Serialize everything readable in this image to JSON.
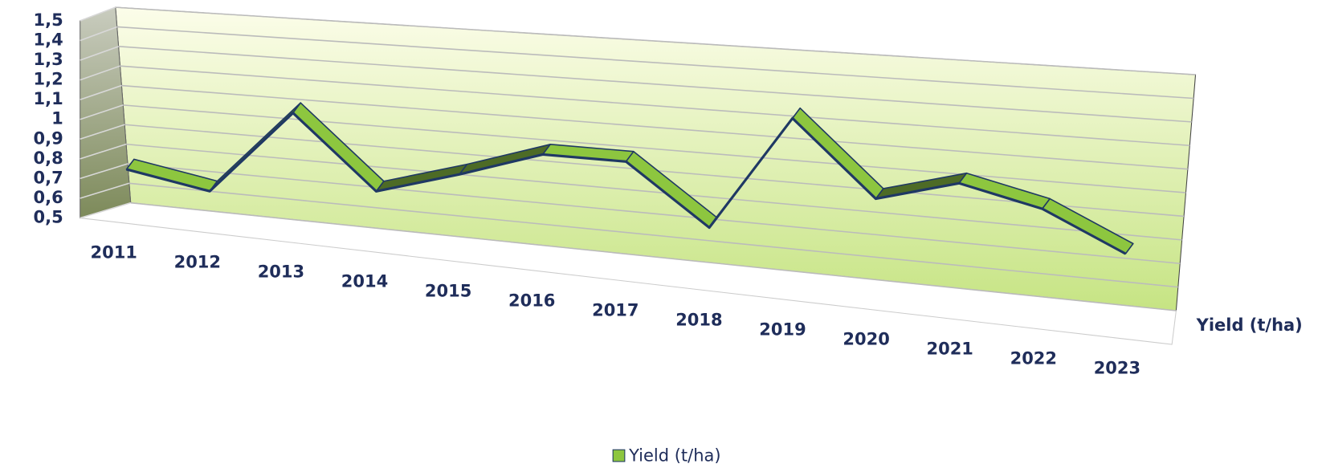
{
  "chart_data": {
    "type": "line3d",
    "categories": [
      "2011",
      "2012",
      "2013",
      "2014",
      "2015",
      "2016",
      "2017",
      "2018",
      "2019",
      "2020",
      "2021",
      "2022",
      "2023"
    ],
    "series": [
      {
        "name": "Yield (t/ha)",
        "color": "#8dc63f",
        "values": [
          0.67,
          0.6,
          1.03,
          0.68,
          0.8,
          0.93,
          0.93,
          0.66,
          1.19,
          0.86,
          0.96,
          0.88,
          0.72
        ]
      }
    ],
    "ylim": [
      0.5,
      1.5
    ],
    "yticks": [
      {
        "value": 0.5,
        "label": "0,5"
      },
      {
        "value": 0.6,
        "label": "0,6"
      },
      {
        "value": 0.7,
        "label": "0,7"
      },
      {
        "value": 0.8,
        "label": "0,8"
      },
      {
        "value": 0.9,
        "label": "0,9"
      },
      {
        "value": 1,
        "label": "1"
      },
      {
        "value": 1.1,
        "label": "1,1"
      },
      {
        "value": 1.2,
        "label": "1,2"
      },
      {
        "value": 1.3,
        "label": "1,3"
      },
      {
        "value": 1.4,
        "label": "1,4"
      },
      {
        "value": 1.5,
        "label": "1,5"
      }
    ],
    "grid": true,
    "legend": "bottom"
  }
}
